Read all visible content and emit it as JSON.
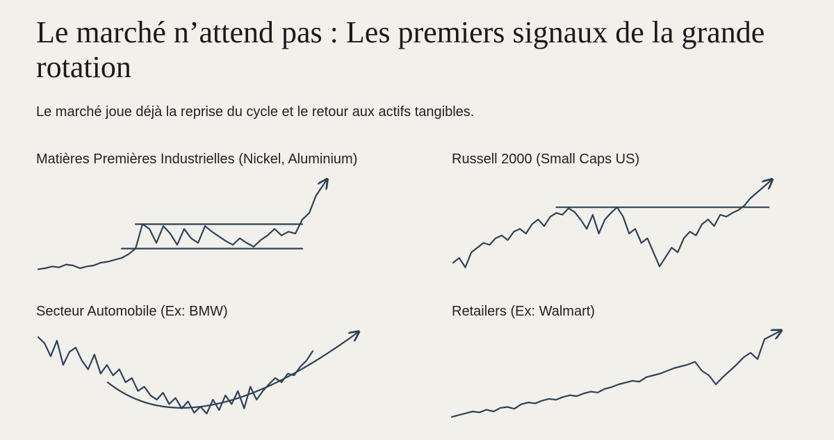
{
  "header": {
    "title": "Le marché n’attend pas : Les premiers signaux de la grande rotation",
    "subtitle": "Le marché joue déjà la reprise du cycle et le retour aux actifs tangibles."
  },
  "chart_data": [
    {
      "type": "line",
      "title": "Matières Premières Industrielles (Nickel, Aluminium)",
      "x": [
        0,
        1,
        2,
        3,
        4,
        5,
        6,
        7,
        8,
        9,
        10,
        11,
        12,
        13,
        14,
        15,
        16,
        17,
        18,
        19,
        20,
        21,
        22,
        23,
        24,
        25,
        26,
        27,
        28,
        29,
        30,
        31,
        32,
        33,
        34,
        35,
        36,
        37,
        38,
        39,
        40
      ],
      "series": [
        {
          "color": "#2d4257",
          "values": [
            2,
            3,
            5,
            4,
            7,
            6,
            3,
            5,
            6,
            9,
            10,
            12,
            14,
            18,
            24,
            50,
            45,
            30,
            48,
            40,
            28,
            45,
            35,
            30,
            48,
            42,
            37,
            32,
            28,
            35,
            30,
            26,
            33,
            38,
            45,
            38,
            42,
            40,
            55,
            62,
            81
          ]
        }
      ],
      "xlim": [
        0,
        40
      ],
      "ylim": [
        0,
        100
      ],
      "reference_lines": [
        {
          "value": 50,
          "x": [
            14,
            38
          ]
        },
        {
          "value": 24,
          "x": [
            12,
            38
          ]
        }
      ]
    },
    {
      "type": "line",
      "title": "Russell 2000 (Small Caps US)",
      "x": [
        0,
        1,
        2,
        3,
        4,
        5,
        6,
        7,
        8,
        9,
        10,
        11,
        12,
        13,
        14,
        15,
        16,
        17,
        18,
        19,
        20,
        21,
        22,
        23,
        24,
        25,
        26,
        27,
        28,
        29,
        30,
        31,
        32,
        33,
        34,
        35,
        36,
        37,
        38,
        39,
        40,
        41,
        42,
        43,
        44,
        45,
        46,
        47,
        48,
        49
      ],
      "series": [
        {
          "color": "#2d4257",
          "values": [
            9,
            14,
            4,
            20,
            25,
            30,
            28,
            35,
            38,
            33,
            42,
            45,
            40,
            50,
            55,
            48,
            58,
            62,
            60,
            67,
            63,
            55,
            45,
            60,
            40,
            55,
            62,
            68,
            58,
            40,
            45,
            30,
            35,
            20,
            5,
            15,
            25,
            20,
            35,
            42,
            38,
            50,
            55,
            48,
            60,
            58,
            62,
            65,
            70,
            78
          ]
        }
      ],
      "xlim": [
        0,
        49
      ],
      "ylim": [
        0,
        100
      ],
      "reference_lines": [
        {
          "value": 68,
          "x": [
            17,
            52
          ]
        }
      ]
    },
    {
      "type": "line",
      "title": "Secteur Automobile (Ex: BMW)",
      "x": [
        0,
        1,
        2,
        3,
        4,
        5,
        6,
        7,
        8,
        9,
        10,
        11,
        12,
        13,
        14,
        15,
        16,
        17,
        18,
        19,
        20,
        21,
        22,
        23,
        24,
        25,
        26,
        27,
        28,
        29,
        30,
        31,
        32,
        33,
        34,
        35,
        36,
        37,
        38,
        39,
        40,
        41,
        42,
        43,
        44
      ],
      "series": [
        {
          "color": "#2d4257",
          "values": [
            92,
            85,
            70,
            88,
            60,
            75,
            80,
            65,
            55,
            72,
            50,
            60,
            48,
            55,
            40,
            45,
            30,
            35,
            25,
            20,
            28,
            15,
            22,
            10,
            18,
            5,
            12,
            4,
            20,
            8,
            25,
            15,
            30,
            10,
            35,
            20,
            30,
            38,
            45,
            40,
            50,
            48,
            58,
            65,
            76
          ]
        }
      ],
      "xlim": [
        0,
        44
      ],
      "ylim": [
        0,
        100
      ]
    },
    {
      "type": "line",
      "title": "Retailers (Ex: Walmart)",
      "x": [
        0,
        1,
        2,
        3,
        4,
        5,
        6,
        7,
        8,
        9,
        10,
        11,
        12,
        13,
        14,
        15,
        16,
        17,
        18,
        19,
        20,
        21,
        22,
        23,
        24,
        25,
        26,
        27,
        28,
        29,
        30,
        31,
        32,
        33,
        34,
        35,
        36,
        37,
        38,
        39,
        40,
        41,
        42,
        43,
        44,
        45
      ],
      "series": [
        {
          "color": "#2d4257",
          "values": [
            4,
            6,
            8,
            10,
            9,
            12,
            10,
            14,
            15,
            13,
            18,
            20,
            19,
            22,
            24,
            23,
            26,
            28,
            27,
            30,
            32,
            31,
            35,
            37,
            40,
            42,
            44,
            43,
            48,
            50,
            52,
            55,
            58,
            60,
            62,
            65,
            55,
            50,
            40,
            48,
            55,
            62,
            70,
            75,
            68,
            90
          ]
        }
      ],
      "xlim": [
        0,
        45
      ],
      "ylim": [
        0,
        100
      ]
    }
  ]
}
